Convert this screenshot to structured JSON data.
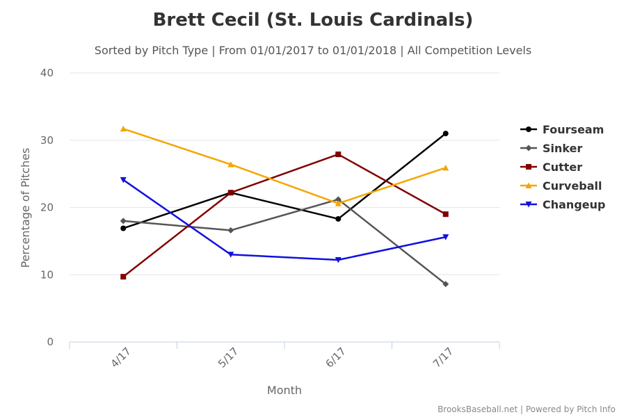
{
  "chart_data": {
    "type": "line",
    "title": "Brett Cecil (St. Louis Cardinals)",
    "subtitle": "Sorted by Pitch Type | From 01/01/2017 to 01/01/2018 | All Competition Levels",
    "xlabel": "Month",
    "ylabel": "Percentage of Pitches",
    "categories": [
      "4/17",
      "5/17",
      "6/17",
      "7/17"
    ],
    "ylim": [
      0,
      40
    ],
    "yticks": [
      0,
      10,
      20,
      30,
      40
    ],
    "grid": true,
    "legend_position": "right",
    "credits": "BrooksBaseball.net | Powered by Pitch Info",
    "series": [
      {
        "name": "Fourseam",
        "color": "#000000",
        "marker": "circle",
        "values": [
          16.9,
          22.2,
          18.3,
          31.0
        ]
      },
      {
        "name": "Sinker",
        "color": "#555555",
        "marker": "diamond",
        "values": [
          18.0,
          16.6,
          21.2,
          8.6
        ]
      },
      {
        "name": "Cutter",
        "color": "#800000",
        "marker": "square",
        "values": [
          9.7,
          22.2,
          27.9,
          19.0
        ]
      },
      {
        "name": "Curveball",
        "color": "#F5A500",
        "marker": "triangle",
        "values": [
          31.7,
          26.4,
          20.6,
          25.9
        ]
      },
      {
        "name": "Changeup",
        "color": "#1010E0",
        "marker": "triangle-down",
        "values": [
          24.1,
          13.0,
          12.2,
          15.6
        ]
      }
    ]
  }
}
